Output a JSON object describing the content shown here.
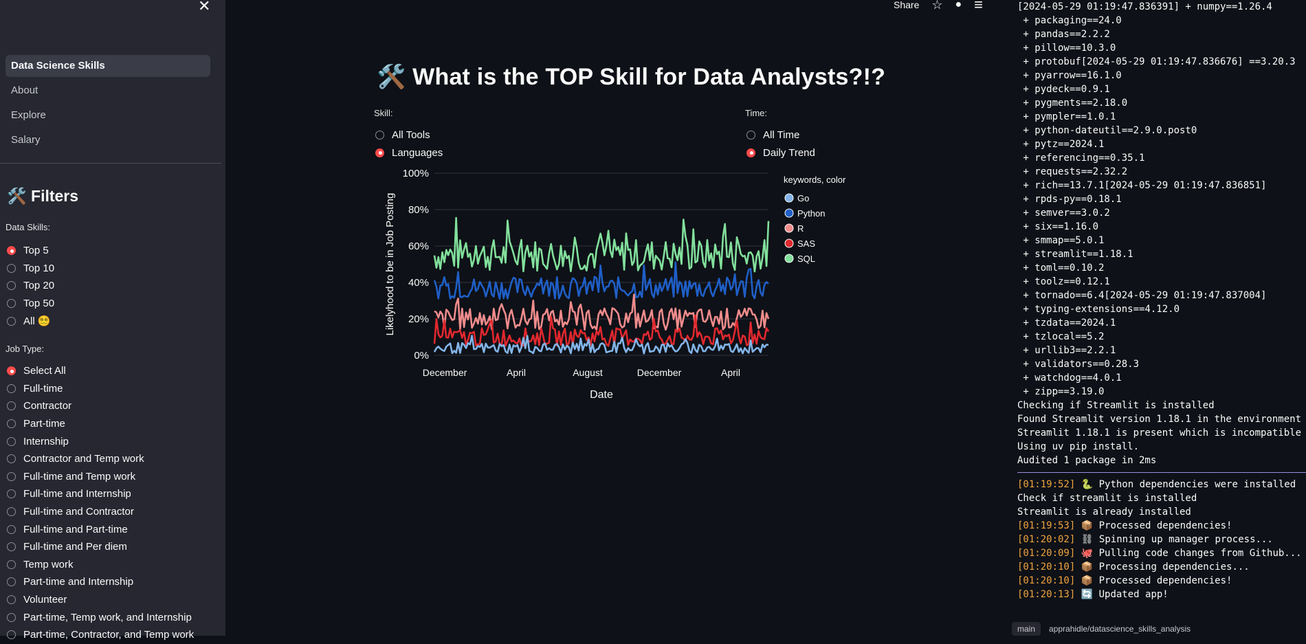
{
  "sidebar": {
    "close_label": "✕",
    "nav": [
      {
        "label": "Data Science Skills",
        "active": true
      },
      {
        "label": "About",
        "active": false
      },
      {
        "label": "Explore",
        "active": false
      },
      {
        "label": "Salary",
        "active": false
      }
    ],
    "filters_title": "🛠️ Filters",
    "data_skills_label": "Data Skills:",
    "data_skills_options": [
      "Top 5",
      "Top 10",
      "Top 20",
      "Top 50",
      "All 😵‍💫"
    ],
    "data_skills_selected": 0,
    "job_type_label": "Job Type:",
    "job_type_options": [
      "Select All",
      "Full-time",
      "Contractor",
      "Part-time",
      "Internship",
      "Contractor and Temp work",
      "Full-time and Temp work",
      "Full-time and Internship",
      "Full-time and Contractor",
      "Full-time and Part-time",
      "Full-time and Per diem",
      "Temp work",
      "Part-time and Internship",
      "Volunteer",
      "Part-time, Temp work, and Internship",
      "Part-time, Contractor, and Temp work"
    ],
    "job_type_selected": 0
  },
  "header": {
    "share_label": "Share",
    "star_icon": "☆",
    "github_icon": "●",
    "menu_icon": "≡"
  },
  "main": {
    "title": "🛠️ What is the TOP Skill for Data Analysts?!?",
    "skill_label": "Skill:",
    "skill_options": [
      "All Tools",
      "Languages"
    ],
    "skill_selected": 1,
    "time_label": "Time:",
    "time_options": [
      "All Time",
      "Daily Trend"
    ],
    "time_selected": 1
  },
  "chart_data": {
    "type": "line",
    "xlabel": "Date",
    "ylabel": "Likelyhood to be in Job Posting",
    "y_ticks": [
      "100%",
      "80%",
      "60%",
      "40%",
      "20%",
      "0%"
    ],
    "x_ticks": [
      "December",
      "April",
      "August",
      "December",
      "April"
    ],
    "ylim": [
      0,
      1
    ],
    "legend_title": "keywords, color",
    "legend_placement": "right",
    "series": [
      {
        "name": "Go",
        "color": "#83b4e8",
        "mean": 0.04,
        "spread": 0.03
      },
      {
        "name": "Python",
        "color": "#1f5fc8",
        "mean": 0.37,
        "spread": 0.06
      },
      {
        "name": "R",
        "color": "#f08c8c",
        "mean": 0.2,
        "spread": 0.06
      },
      {
        "name": "SAS",
        "color": "#e0282e",
        "mean": 0.1,
        "spread": 0.05
      },
      {
        "name": "SQL",
        "color": "#82e09c",
        "mean": 0.55,
        "spread": 0.09
      }
    ]
  },
  "log": {
    "lines": [
      "[2024-05-29 01:19:47.836391] + numpy==1.26.4",
      " + packaging==24.0",
      " + pandas==2.2.2",
      " + pillow==10.3.0",
      " + protobuf[2024-05-29 01:19:47.836676] ==3.20.3",
      " + pyarrow==16.1.0",
      " + pydeck==0.9.1",
      " + pygments==2.18.0",
      " + pympler==1.0.1",
      " + python-dateutil==2.9.0.post0",
      " + pytz==2024.1",
      " + referencing==0.35.1",
      " + requests==2.32.2",
      " + rich==13.7.1[2024-05-29 01:19:47.836851]",
      " + rpds-py==0.18.1",
      " + semver==3.0.2",
      " + six==1.16.0",
      " + smmap==5.0.1",
      " + streamlit==1.18.1",
      " + toml==0.10.2",
      " + toolz==0.12.1",
      " + tornado==6.4[2024-05-29 01:19:47.837004]",
      " + typing-extensions==4.12.0",
      " + tzdata==2024.1",
      " + tzlocal==5.2",
      " + urllib3==2.2.1",
      " + validators==0.28.3",
      " + watchdog==4.0.1",
      " + zipp==3.19.0",
      "Checking if Streamlit is installed",
      "Found Streamlit version 1.18.1 in the environment",
      "Streamlit 1.18.1 is present which is incompatible",
      "Using uv pip install.",
      "Audited 1 package in 2ms"
    ],
    "events": [
      {
        "ts": "[01:19:52]",
        "text": " 🐍 Python dependencies were installed"
      },
      {
        "ts": "",
        "text": "Check if streamlit is installed"
      },
      {
        "ts": "",
        "text": "Streamlit is already installed"
      },
      {
        "ts": "[01:19:53]",
        "text": " 📦 Processed dependencies!"
      },
      {
        "ts": "[01:20:02]",
        "text": " ⛓ Spinning up manager process..."
      },
      {
        "ts": "[01:20:09]",
        "text": " 🐙 Pulling code changes from Github..."
      },
      {
        "ts": "[01:20:10]",
        "text": " 📦 Processing dependencies..."
      },
      {
        "ts": "[01:20:10]",
        "text": " 📦 Processed dependencies!"
      },
      {
        "ts": "[01:20:13]",
        "text": " 🔄 Updated app!"
      }
    ],
    "branch": "main",
    "repo": "apprahidle/datascience_skills_analysis"
  }
}
